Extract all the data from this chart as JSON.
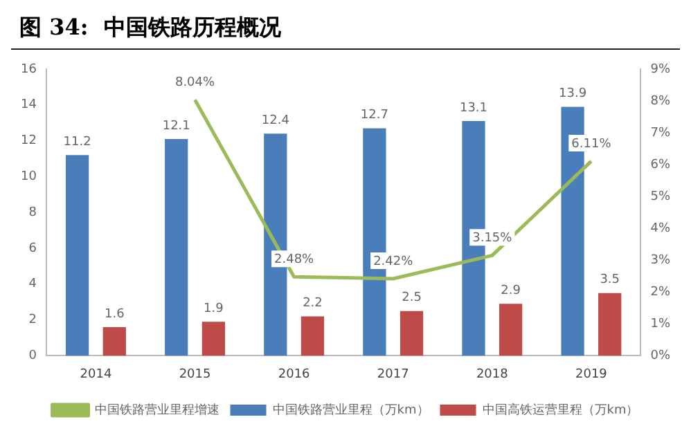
{
  "chart_data": {
    "type": "bar",
    "title": "图 34:  中国铁路历程概况",
    "categories": [
      "2014",
      "2015",
      "2016",
      "2017",
      "2018",
      "2019"
    ],
    "series": [
      {
        "name": "中国铁路营业里程（万km）",
        "color": "#4a7ebb",
        "values": [
          11.2,
          12.1,
          12.4,
          12.7,
          13.1,
          13.9
        ],
        "value_labels": [
          "11.2",
          "12.1",
          "12.4",
          "12.7",
          "13.1",
          "13.9"
        ]
      },
      {
        "name": "中国高铁运营里程（万km）",
        "color": "#be4b48",
        "values": [
          1.6,
          1.9,
          2.2,
          2.5,
          2.9,
          3.5
        ],
        "value_labels": [
          "1.6",
          "1.9",
          "2.2",
          "2.5",
          "2.9",
          "3.5"
        ]
      },
      {
        "name": "中国铁路营业里程增速",
        "type": "line",
        "axis": "y2",
        "color": "#9bbb59",
        "values": [
          null,
          8.04,
          2.48,
          2.42,
          3.15,
          6.11
        ],
        "value_labels": [
          null,
          "8.04%",
          "2.48%",
          "2.42%",
          "3.15%",
          "6.11%"
        ]
      }
    ],
    "ylim": [
      0,
      16
    ],
    "yticks": [
      0,
      2,
      4,
      6,
      8,
      10,
      12,
      14,
      16
    ],
    "y2lim": [
      0,
      9
    ],
    "y2ticks": [
      {
        "value": 0,
        "label": "0%"
      },
      {
        "value": 1,
        "label": "1%"
      },
      {
        "value": 2,
        "label": "2%"
      },
      {
        "value": 3,
        "label": "3%"
      },
      {
        "value": 4,
        "label": "4%"
      },
      {
        "value": 5,
        "label": "5%"
      },
      {
        "value": 6,
        "label": "6%"
      },
      {
        "value": 7,
        "label": "7%"
      },
      {
        "value": 8,
        "label": "8%"
      },
      {
        "value": 9,
        "label": "9%"
      }
    ],
    "grid": false,
    "legend": "bottom",
    "marker": "none",
    "line_style": "solid"
  }
}
